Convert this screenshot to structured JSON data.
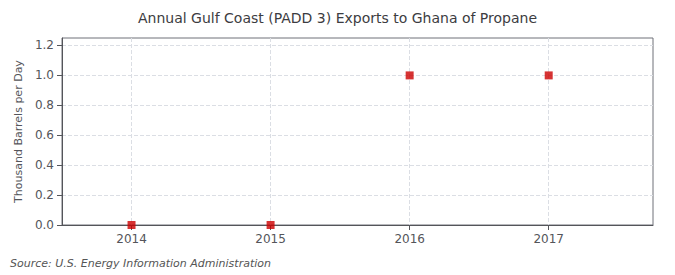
{
  "chart_data": {
    "type": "scatter",
    "title": "Annual Gulf Coast (PADD 3) Exports to Ghana of Propane",
    "ylabel": "Thousand Barrels per Day",
    "annotation": "Source: U.S. Energy Information Administration",
    "x": [
      2014,
      2015,
      2016,
      2017
    ],
    "values": [
      0.0,
      0.0,
      1.0,
      1.0
    ],
    "color": "#CC0000",
    "marker": "square",
    "xlim": [
      2013.5,
      2017.75
    ],
    "xticks": [
      2014,
      2015,
      2016,
      2017
    ],
    "ylim": [
      0.0,
      1.25
    ],
    "yticks": [
      {
        "value": 0.0,
        "label": "0.0"
      },
      0.2,
      0.4,
      0.6,
      0.8,
      {
        "value": 1.0,
        "label": "1.0"
      },
      1.2
    ],
    "grid": true
  }
}
